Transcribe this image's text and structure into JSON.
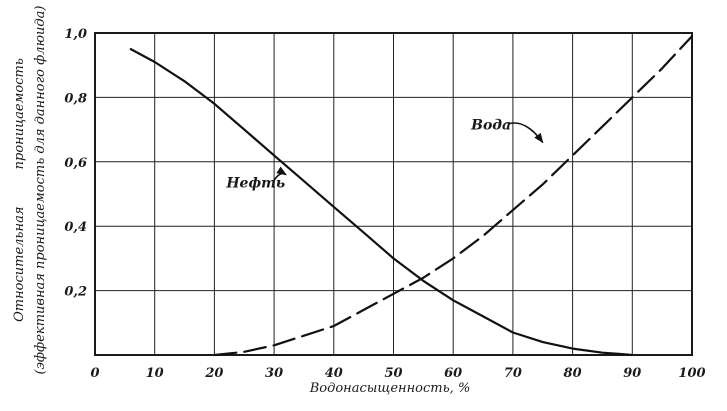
{
  "chart_data": {
    "type": "line",
    "title": "",
    "xlabel": "Водонасыщенность, %",
    "ylabel_lines": [
      "Относительная         проницаемость",
      "(эффективная проницаемость для данного флюида)"
    ],
    "xlim": [
      0,
      100
    ],
    "ylim": [
      0,
      1.0
    ],
    "x_ticks": [
      0,
      10,
      20,
      30,
      40,
      50,
      60,
      70,
      80,
      90,
      100
    ],
    "x_tick_labels": [
      "0",
      "10",
      "20",
      "30",
      "40",
      "50",
      "60",
      "70",
      "80",
      "90",
      "100"
    ],
    "y_ticks": [
      0.2,
      0.4,
      0.6,
      0.8,
      1.0
    ],
    "y_tick_labels": [
      "0,2",
      "0,4",
      "0,6",
      "0,8",
      "1,0"
    ],
    "grid": true,
    "series": [
      {
        "name": "Нефть",
        "style": "solid",
        "x": [
          6,
          10,
          15,
          20,
          25,
          30,
          35,
          40,
          45,
          50,
          55,
          60,
          65,
          70,
          75,
          80,
          85,
          88,
          90
        ],
        "y": [
          0.95,
          0.91,
          0.85,
          0.78,
          0.7,
          0.62,
          0.54,
          0.46,
          0.38,
          0.3,
          0.23,
          0.17,
          0.12,
          0.07,
          0.04,
          0.02,
          0.007,
          0.003,
          0.0
        ]
      },
      {
        "name": "Вода",
        "style": "dashed",
        "x": [
          20,
          25,
          30,
          35,
          40,
          45,
          50,
          55,
          60,
          65,
          70,
          75,
          80,
          85,
          90,
          95,
          100
        ],
        "y": [
          0.0,
          0.01,
          0.03,
          0.06,
          0.09,
          0.14,
          0.19,
          0.24,
          0.3,
          0.37,
          0.45,
          0.53,
          0.62,
          0.71,
          0.8,
          0.89,
          0.99
        ]
      }
    ],
    "annotations": [
      {
        "text": "Нефть",
        "x": 22,
        "y": 0.52,
        "arrow_to": [
          32,
          0.56
        ]
      },
      {
        "text": "Вода",
        "x": 63,
        "y": 0.7,
        "arrow_to": [
          75,
          0.66
        ]
      }
    ]
  }
}
